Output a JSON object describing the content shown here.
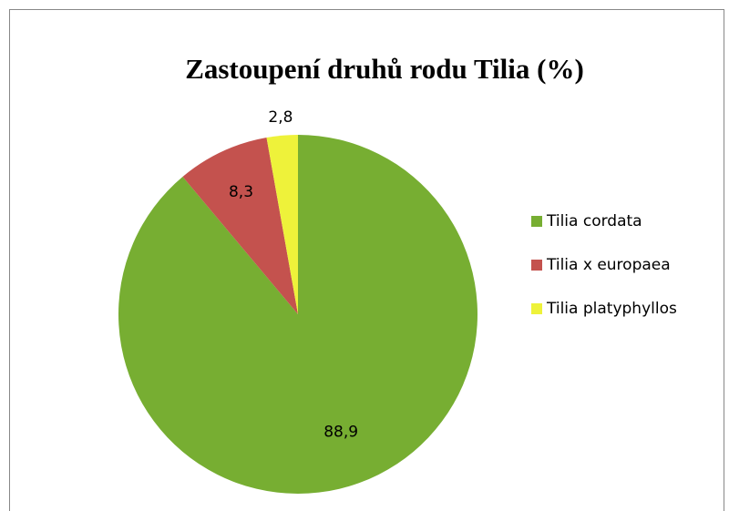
{
  "chart_data": {
    "type": "pie",
    "title": "Zastoupení druhů rodu Tilia (%)",
    "categories": [
      "Tilia cordata",
      "Tilia x europaea",
      "Tilia platyphyllos"
    ],
    "values": [
      88.9,
      8.3,
      2.8
    ],
    "value_labels": [
      "88,9",
      "8,3",
      "2,8"
    ],
    "colors": [
      "#77ae32",
      "#c4524e",
      "#eef23a"
    ],
    "legend": "right"
  }
}
